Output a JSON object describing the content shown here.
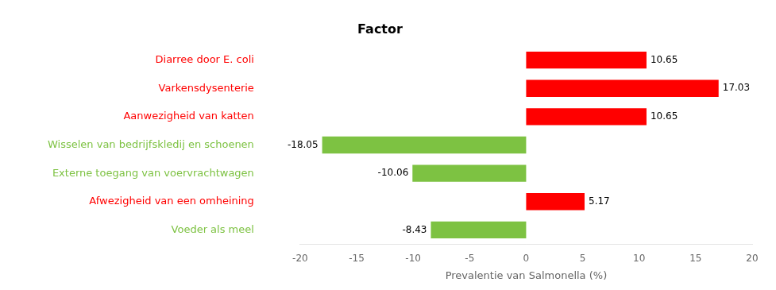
{
  "chart_data": {
    "type": "bar",
    "orientation": "horizontal",
    "title": "Factor",
    "xlabel": "Prevalentie van Salmonella (%)",
    "categories": [
      "Diarree door E. coli",
      "Varkensdysenterie",
      "Aanwezigheid van katten",
      "Wisselen van bedrijfskledij en schoenen",
      "Externe toegang van voervrachtwagen",
      "Afwezigheid van een omheining",
      "Voeder als meel"
    ],
    "values": [
      10.65,
      17.03,
      10.65,
      -18.05,
      -10.06,
      5.17,
      -8.43
    ],
    "colors": [
      "#ff0000",
      "#ff0000",
      "#ff0000",
      "#7dc242",
      "#7dc242",
      "#ff0000",
      "#7dc242"
    ],
    "xlim": [
      -20,
      20
    ],
    "xticks": [
      -20,
      -15,
      -10,
      -5,
      0,
      5,
      10,
      15,
      20
    ],
    "grid": false,
    "data_labels": true
  }
}
